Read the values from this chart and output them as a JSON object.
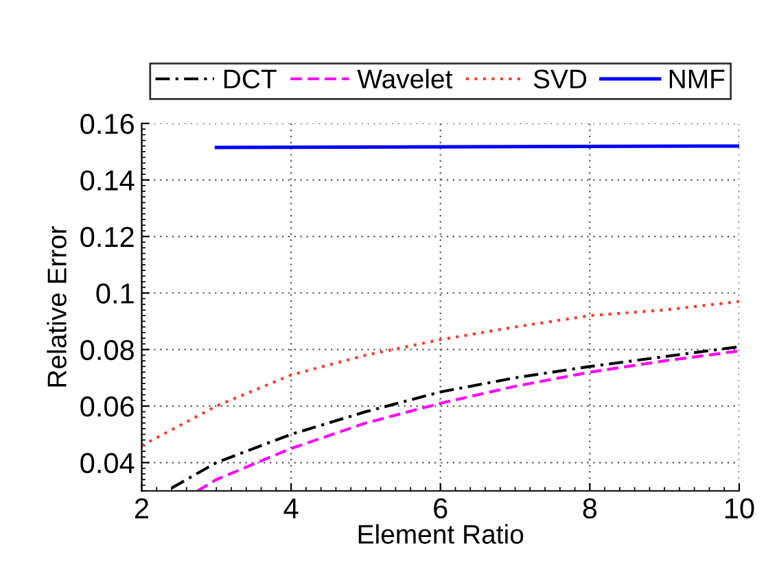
{
  "chart_data": {
    "type": "line",
    "xlabel": "Element Ratio",
    "ylabel": "Relative Error",
    "series": [
      {
        "name": "DCT",
        "color": "#000000",
        "line_style": "dashdot",
        "x": [
          2.4,
          3,
          4,
          5,
          6,
          7,
          8,
          9,
          10
        ],
        "values": [
          0.031,
          0.04,
          0.05,
          0.058,
          0.065,
          0.07,
          0.074,
          0.0775,
          0.081
        ]
      },
      {
        "name": "Wavelet",
        "color": "#ff00ff",
        "line_style": "dashed",
        "x": [
          2.75,
          3,
          4,
          5,
          6,
          7,
          8,
          9,
          10
        ],
        "values": [
          0.03,
          0.034,
          0.045,
          0.054,
          0.061,
          0.067,
          0.072,
          0.076,
          0.0795
        ]
      },
      {
        "name": "SVD",
        "color": "#ff3b30",
        "line_style": "dotted",
        "x": [
          2,
          3,
          4,
          5,
          6,
          7,
          8,
          9,
          10
        ],
        "values": [
          0.046,
          0.06,
          0.071,
          0.078,
          0.0835,
          0.088,
          0.092,
          0.094,
          0.097
        ]
      },
      {
        "name": "NMF",
        "color": "#0000ff",
        "line_style": "solid",
        "x": [
          3,
          10
        ],
        "values": [
          0.1515,
          0.152
        ]
      }
    ],
    "xlim": [
      2,
      10
    ],
    "xticks": [
      2,
      4,
      6,
      8,
      10
    ],
    "ylim": [
      0.03,
      0.16
    ],
    "yticks": [
      {
        "value": 0.04,
        "label": "0.04"
      },
      {
        "value": 0.06,
        "label": "0.06"
      },
      {
        "value": 0.08,
        "label": "0.08"
      },
      {
        "value": 0.1,
        "label": "0.1"
      },
      {
        "value": 0.12,
        "label": "0.12"
      },
      {
        "value": 0.14,
        "label": "0.14"
      },
      {
        "value": 0.16,
        "label": "0.16"
      }
    ],
    "grid": true,
    "legend": "top",
    "marker": "none"
  }
}
